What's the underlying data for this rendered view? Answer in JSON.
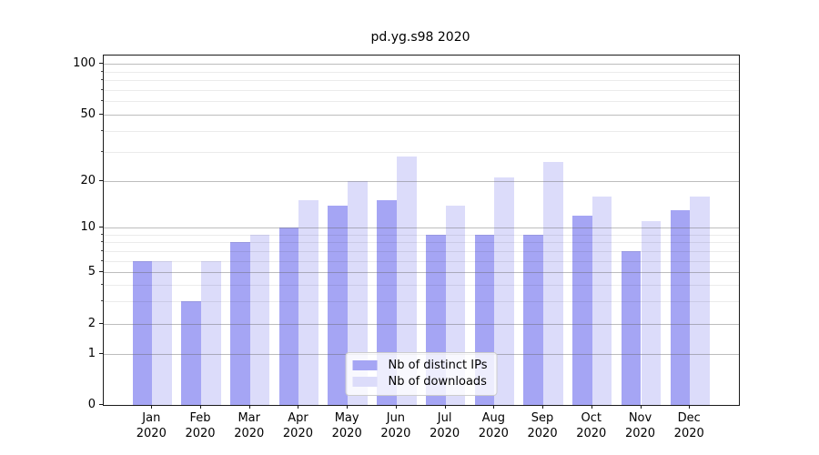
{
  "chart_data": {
    "type": "bar",
    "title": "pd.yg.s98 2020",
    "categories": [
      "Jan 2020",
      "Feb 2020",
      "Mar 2020",
      "Apr 2020",
      "May 2020",
      "Jun 2020",
      "Jul 2020",
      "Aug 2020",
      "Sep 2020",
      "Oct 2020",
      "Nov 2020",
      "Dec 2020"
    ],
    "series": [
      {
        "name": "Nb of distinct IPs",
        "color": "#a5a5f4",
        "values": [
          6,
          3,
          8,
          10,
          14,
          15,
          9,
          9,
          9,
          12,
          7,
          13
        ]
      },
      {
        "name": "Nb of downloads",
        "color": "#dcdcfa",
        "values": [
          6,
          6,
          9,
          15,
          20,
          28,
          14,
          21,
          26,
          16,
          11,
          16
        ]
      }
    ],
    "xlabel": "",
    "ylabel": "",
    "yscale": "log-like with 0 baseline",
    "ylim": [
      0,
      110
    ],
    "y_major_ticks": [
      0,
      1,
      2,
      5,
      10,
      20,
      50,
      100
    ],
    "y_minor_ticks": [
      3,
      4,
      6,
      7,
      8,
      9,
      30,
      40,
      60,
      70,
      80,
      90
    ],
    "y_axis_anchor_fracs": [
      [
        0,
        0
      ],
      [
        1,
        0.1461
      ],
      [
        2,
        0.233
      ],
      [
        5,
        0.3791
      ],
      [
        10,
        0.5069
      ],
      [
        20,
        0.64
      ],
      [
        50,
        0.8304
      ],
      [
        100,
        0.9765
      ]
    ],
    "grid": true,
    "legend_position": "lower center"
  },
  "legend": {
    "items": [
      {
        "label": "Nb of distinct IPs",
        "color": "#a5a5f4"
      },
      {
        "label": "Nb of downloads",
        "color": "#dcdcfa"
      }
    ]
  },
  "colors": {
    "background": "#ffffff",
    "bar_dark": "#a5a5f4",
    "bar_light": "#dcdcfa",
    "spine": "#1a1a1a",
    "major_grid": "rgba(98,98,98,0.42)",
    "minor_grid": "rgba(0,0,0,0.08)"
  }
}
